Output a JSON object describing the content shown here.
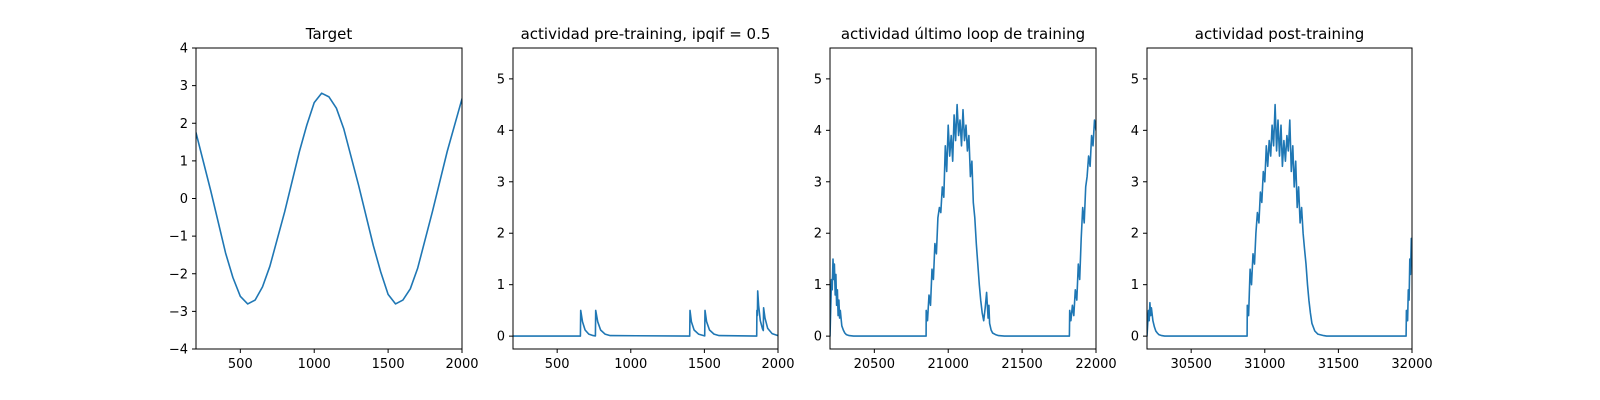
{
  "figure": {
    "background": "#ffffff",
    "line_color": "#1f77b4"
  },
  "chart_data": [
    {
      "type": "line",
      "title": "Target",
      "xlim": [
        200,
        2000
      ],
      "ylim": [
        -4,
        4
      ],
      "xticks": [
        500,
        1000,
        1500,
        2000
      ],
      "yticks": [
        -4,
        -3,
        -2,
        -1,
        0,
        1,
        2,
        3,
        4
      ],
      "ytick_labels": [
        "−4",
        "−3",
        "−2",
        "−1",
        "0",
        "1",
        "2",
        "3",
        "4"
      ],
      "grid": false,
      "series": [
        {
          "x": [
            200,
            300,
            400,
            450,
            500,
            550,
            600,
            650,
            700,
            800,
            900,
            950,
            1000,
            1050,
            1100,
            1150,
            1200,
            1300,
            1400,
            1450,
            1500,
            1550,
            1600,
            1650,
            1700,
            1800,
            1900,
            2000
          ],
          "y": [
            1.75,
            0.2,
            -1.45,
            -2.1,
            -2.6,
            -2.8,
            -2.7,
            -2.35,
            -1.8,
            -0.35,
            1.25,
            1.95,
            2.55,
            2.8,
            2.7,
            2.4,
            1.85,
            0.35,
            -1.25,
            -1.95,
            -2.55,
            -2.8,
            -2.7,
            -2.4,
            -1.85,
            -0.35,
            1.25,
            2.65
          ]
        }
      ]
    },
    {
      "type": "line",
      "title": "actividad pre-training, ipqif = 0.5",
      "xlim": [
        200,
        2000
      ],
      "ylim": [
        -0.25,
        5.6
      ],
      "xticks": [
        500,
        1000,
        1500,
        2000
      ],
      "yticks": [
        0,
        1,
        2,
        3,
        4,
        5
      ],
      "grid": false,
      "series": [
        {
          "x": [
            200,
            658,
            660,
            672,
            690,
            715,
            745,
            760,
            762,
            775,
            795,
            825,
            860,
            1400,
            1402,
            1412,
            1430,
            1460,
            1495,
            1502,
            1504,
            1515,
            1535,
            1565,
            1600,
            1855,
            1857,
            1860,
            1862,
            1868,
            1880,
            1895,
            1900,
            1902,
            1912,
            1930,
            1960,
            1990,
            2000
          ],
          "y": [
            0,
            0,
            0.5,
            0.28,
            0.12,
            0.04,
            0.01,
            0.005,
            0.5,
            0.28,
            0.12,
            0.04,
            0.01,
            0,
            0.5,
            0.28,
            0.12,
            0.04,
            0.01,
            0.005,
            0.5,
            0.28,
            0.12,
            0.04,
            0.01,
            0,
            0.5,
            0.4,
            0.88,
            0.6,
            0.3,
            0.14,
            0.11,
            0.55,
            0.35,
            0.15,
            0.05,
            0.02,
            0.01
          ]
        }
      ]
    },
    {
      "type": "line",
      "title": "actividad último loop de training",
      "xlim": [
        20200,
        22000
      ],
      "ylim": [
        -0.25,
        5.6
      ],
      "xticks": [
        20500,
        21000,
        21500,
        22000
      ],
      "yticks": [
        0,
        1,
        2,
        3,
        4,
        5
      ],
      "grid": false,
      "series": [
        {
          "x": [
            20200,
            20210,
            20215,
            20220,
            20225,
            20230,
            20235,
            20240,
            20245,
            20250,
            20255,
            20260,
            20265,
            20270,
            20280,
            20290,
            20300,
            20310,
            20330,
            20360,
            20420,
            20850,
            20851,
            20860,
            20870,
            20880,
            20890,
            20900,
            20910,
            20920,
            20930,
            20940,
            20950,
            20960,
            20970,
            20980,
            20990,
            21000,
            21010,
            21020,
            21030,
            21040,
            21050,
            21060,
            21070,
            21080,
            21090,
            21100,
            21110,
            21120,
            21130,
            21140,
            21150,
            21160,
            21170,
            21180,
            21190,
            21200,
            21210,
            21220,
            21230,
            21240,
            21250,
            21260,
            21270,
            21275,
            21280,
            21290,
            21300,
            21320,
            21340,
            21380,
            21400,
            21820,
            21822,
            21830,
            21840,
            21850,
            21860,
            21870,
            21880,
            21890,
            21900,
            21910,
            21920,
            21930,
            21940,
            21950,
            21960,
            21970,
            21980,
            21990,
            22000
          ],
          "y": [
            0,
            1.1,
            0.9,
            1.5,
            1.1,
            1.4,
            0.8,
            1.2,
            0.6,
            0.9,
            0.4,
            0.7,
            0.35,
            0.5,
            0.2,
            0.12,
            0.06,
            0.03,
            0.01,
            0,
            0,
            0,
            0.5,
            0.3,
            0.8,
            0.6,
            1.3,
            1.1,
            1.8,
            1.6,
            2.3,
            2.5,
            2.4,
            2.9,
            2.7,
            3.7,
            3.2,
            4.1,
            3.5,
            3.9,
            3.4,
            4.3,
            3.8,
            4.5,
            3.9,
            4.2,
            3.7,
            4.4,
            3.8,
            4.1,
            3.6,
            3.9,
            3.1,
            3.4,
            2.6,
            2.3,
            1.8,
            1.4,
            1.0,
            0.7,
            0.45,
            0.3,
            0.55,
            0.85,
            0.35,
            0.6,
            0.25,
            0.12,
            0.06,
            0.03,
            0.01,
            0,
            0,
            0,
            0.5,
            0.3,
            0.6,
            0.4,
            0.9,
            0.7,
            1.4,
            1.1,
            1.9,
            2.5,
            2.2,
            2.9,
            3.1,
            3.5,
            3.3,
            3.9,
            3.7,
            4.2,
            4.0
          ]
        }
      ]
    },
    {
      "type": "line",
      "title": "actividad post-training",
      "xlim": [
        30200,
        32000
      ],
      "ylim": [
        -0.25,
        5.6
      ],
      "xticks": [
        30500,
        31000,
        31500,
        32000
      ],
      "yticks": [
        0,
        1,
        2,
        3,
        4,
        5
      ],
      "grid": false,
      "series": [
        {
          "x": [
            30200,
            30210,
            30215,
            30220,
            30225,
            30230,
            30240,
            30250,
            30260,
            30270,
            30280,
            30300,
            30320,
            30360,
            30880,
            30881,
            30890,
            30900,
            30910,
            30920,
            30930,
            30940,
            30950,
            30960,
            30970,
            30980,
            30990,
            31000,
            31010,
            31020,
            31030,
            31040,
            31050,
            31060,
            31070,
            31080,
            31090,
            31100,
            31110,
            31120,
            31130,
            31140,
            31150,
            31160,
            31170,
            31180,
            31190,
            31200,
            31210,
            31220,
            31230,
            31240,
            31250,
            31260,
            31270,
            31280,
            31290,
            31300,
            31310,
            31320,
            31340,
            31360,
            31400,
            31420,
            31960,
            31962,
            31970,
            31975,
            31980,
            31985,
            31990,
            31995,
            32000
          ],
          "y": [
            0,
            0.5,
            0.3,
            0.65,
            0.4,
            0.55,
            0.3,
            0.18,
            0.1,
            0.06,
            0.03,
            0.01,
            0,
            0,
            0,
            0.6,
            0.4,
            1.3,
            1.0,
            1.6,
            1.4,
            2.0,
            2.4,
            2.2,
            2.8,
            2.6,
            3.2,
            3.0,
            3.7,
            3.3,
            3.8,
            3.5,
            4.1,
            3.7,
            4.5,
            3.6,
            4.2,
            3.5,
            4.1,
            3.3,
            3.8,
            3.4,
            3.9,
            3.6,
            4.2,
            3.2,
            3.7,
            2.9,
            3.4,
            2.5,
            2.9,
            2.2,
            2.5,
            2.0,
            1.7,
            1.4,
            1.0,
            0.7,
            0.45,
            0.25,
            0.1,
            0.04,
            0.01,
            0,
            0,
            0.5,
            0.3,
            0.9,
            0.7,
            1.5,
            1.2,
            1.9,
            1.6
          ]
        }
      ]
    }
  ]
}
